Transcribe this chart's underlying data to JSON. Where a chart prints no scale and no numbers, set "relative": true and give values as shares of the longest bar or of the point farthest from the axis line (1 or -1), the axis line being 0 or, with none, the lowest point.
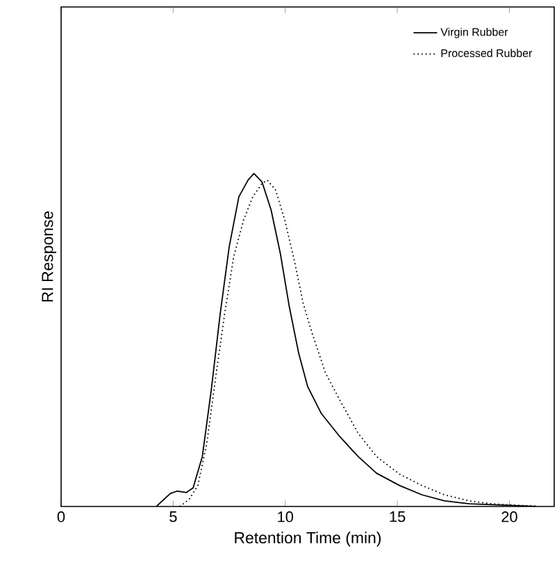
{
  "chart_data": {
    "type": "line",
    "xlabel": "Retention Time (min)",
    "ylabel": "RI Response",
    "relative": true,
    "xlim": [
      0,
      22
    ],
    "xticks": [
      0,
      5,
      10,
      15,
      20
    ],
    "legend": "top right",
    "grid": false,
    "marker": "none",
    "series": [
      {
        "name": "Virgin Rubber",
        "color": "#000000",
        "line_style": "solid",
        "x": [
          4.25,
          4.87,
          5.17,
          5.58,
          5.89,
          6.3,
          6.7,
          7.1,
          7.5,
          7.93,
          8.34,
          8.6,
          8.96,
          9.37,
          9.78,
          10.18,
          10.6,
          11.0,
          11.6,
          12.43,
          13.25,
          14.07,
          15.1,
          16.1,
          17.1,
          18.2,
          20.2,
          21.2
        ],
        "values": [
          0,
          0.039,
          0.046,
          0.042,
          0.056,
          0.15,
          0.35,
          0.58,
          0.78,
          0.93,
          0.98,
          1,
          0.975,
          0.89,
          0.76,
          0.6,
          0.46,
          0.36,
          0.28,
          0.21,
          0.15,
          0.1,
          0.063,
          0.035,
          0.017,
          0.008,
          0.003,
          0
        ]
      },
      {
        "name": "Processed Rubber",
        "color": "#000000",
        "line_style": "dotted",
        "x": [
          5.28,
          5.7,
          6.1,
          6.5,
          6.9,
          7.3,
          7.7,
          8.14,
          8.55,
          8.96,
          9.2,
          9.57,
          9.98,
          10.4,
          10.8,
          11.2,
          11.8,
          12.43,
          13.25,
          14.07,
          15.1,
          16.1,
          17.1,
          18.2,
          19.2,
          20.2,
          21.2
        ],
        "values": [
          0,
          0.02,
          0.063,
          0.19,
          0.39,
          0.58,
          0.75,
          0.86,
          0.93,
          0.97,
          0.98,
          0.95,
          0.86,
          0.74,
          0.61,
          0.52,
          0.4,
          0.32,
          0.22,
          0.15,
          0.097,
          0.063,
          0.035,
          0.017,
          0.008,
          0.004,
          0.001
        ]
      }
    ]
  }
}
